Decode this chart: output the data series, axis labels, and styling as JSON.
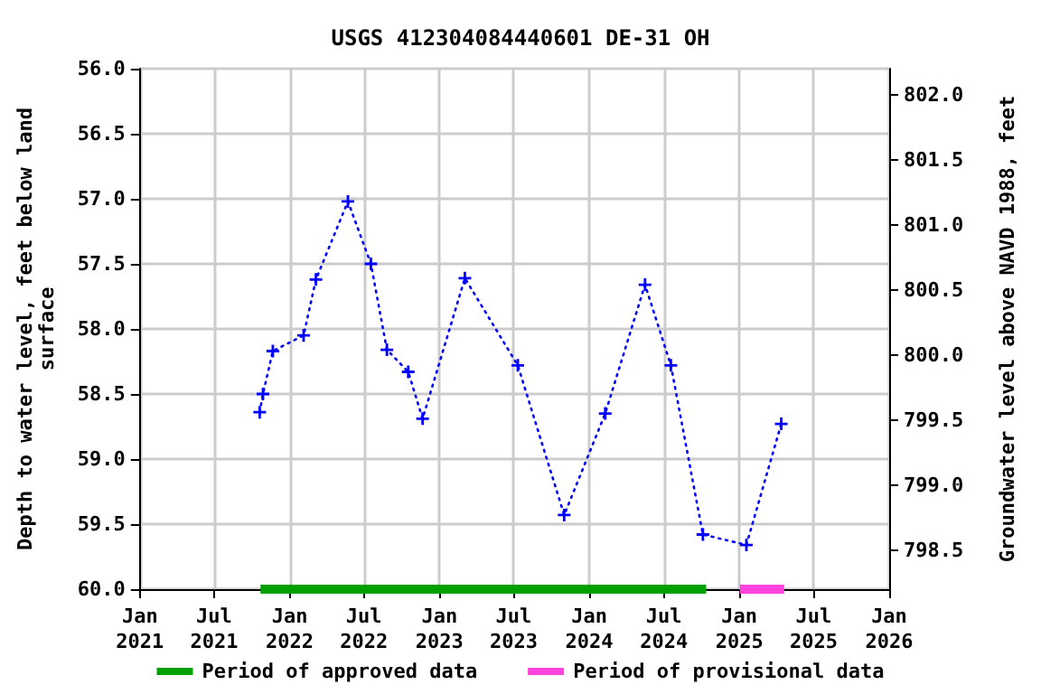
{
  "chart_data": {
    "type": "line",
    "title": "USGS 412304084440601 DE-31 OH",
    "ylabel": "Depth to water level, feet below land surface",
    "y2label": "Groundwater level above NAVD 1988, feet",
    "x": [
      "2021-10-20",
      "2021-10-28",
      "2021-11-21",
      "2022-02-04",
      "2022-03-06",
      "2022-05-23",
      "2022-07-18",
      "2022-08-26",
      "2022-10-17",
      "2022-11-21",
      "2023-03-04",
      "2023-07-11",
      "2023-11-01",
      "2024-02-09",
      "2024-05-16",
      "2024-07-18",
      "2024-10-04",
      "2025-01-18",
      "2025-04-13"
    ],
    "series": [
      {
        "color": "#0000ff",
        "values": [
          58.64,
          58.5,
          58.17,
          58.05,
          57.62,
          57.02,
          57.5,
          58.16,
          58.33,
          58.69,
          57.61,
          58.28,
          59.43,
          58.65,
          57.66,
          58.28,
          59.58,
          59.66,
          58.73
        ]
      },
      {
        "name": "Period of approved data",
        "color": "#00a000",
        "x": [
          "2021-10-22",
          "2024-10-12"
        ],
        "values": [
          60.0,
          60.0
        ],
        "marker": "none",
        "line_style": "solid"
      },
      {
        "name": "Period of provisional data",
        "color": "#ff44dd",
        "x": [
          "2025-01-02",
          "2025-04-20"
        ],
        "values": [
          60.0,
          60.0
        ],
        "marker": "none",
        "line_style": "solid"
      }
    ],
    "marker": "cross",
    "line_style": "dotted",
    "grid": true,
    "legend": "bottom",
    "xlim": [
      "2021-01-01",
      "2026-01-01"
    ],
    "xticks": [
      {
        "value": "2021-01-01",
        "label": "Jan\n2021"
      },
      {
        "value": "2021-07-01",
        "label": "Jul\n2021"
      },
      {
        "value": "2022-01-01",
        "label": "Jan\n2022"
      },
      {
        "value": "2022-07-01",
        "label": "Jul\n2022"
      },
      {
        "value": "2023-01-01",
        "label": "Jan\n2023"
      },
      {
        "value": "2023-07-01",
        "label": "Jul\n2023"
      },
      {
        "value": "2024-01-01",
        "label": "Jan\n2024"
      },
      {
        "value": "2024-07-01",
        "label": "Jul\n2024"
      },
      {
        "value": "2025-01-01",
        "label": "Jan\n2025"
      },
      {
        "value": "2025-07-01",
        "label": "Jul\n2025"
      },
      {
        "value": "2026-01-01",
        "label": "Jan\n2026"
      }
    ],
    "ylim": [
      60.0,
      56.0
    ],
    "yticks": [
      {
        "value": 56,
        "label": "56.0"
      },
      {
        "value": 56.5,
        "label": "56.5"
      },
      {
        "value": 57,
        "label": "57.0"
      },
      {
        "value": 57.5,
        "label": "57.5"
      },
      {
        "value": 58,
        "label": "58.0"
      },
      {
        "value": 58.5,
        "label": "58.5"
      },
      {
        "value": 59,
        "label": "59.0"
      },
      {
        "value": 59.5,
        "label": "59.5"
      },
      {
        "value": 60,
        "label": "60.0"
      }
    ],
    "y2lim": [
      798.2,
      802.2
    ],
    "y2ticks": [
      {
        "value": 798.5,
        "label": "798.5"
      },
      {
        "value": 799,
        "label": "799.0"
      },
      {
        "value": 799.5,
        "label": "799.5"
      },
      {
        "value": 800,
        "label": "800.0"
      },
      {
        "value": 800.5,
        "label": "800.5"
      },
      {
        "value": 801,
        "label": "801.0"
      },
      {
        "value": 801.5,
        "label": "801.5"
      },
      {
        "value": 802,
        "label": "802.0"
      }
    ]
  }
}
